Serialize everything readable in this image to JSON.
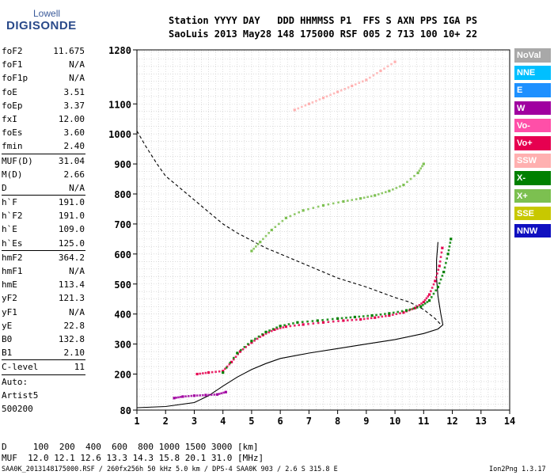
{
  "logo": {
    "line1": "Lowell",
    "line2": "DIGISONDE"
  },
  "header": {
    "row1": "Station YYYY DAY   DDD HHMMSS P1  FFS S AXN PPS IGA PS",
    "row2": "SaoLuis 2013 May28 148 175000 RSF 005 2 713 100 10+ 22"
  },
  "params": [
    {
      "k": "foF2",
      "v": "11.675"
    },
    {
      "k": "foF1",
      "v": "N/A"
    },
    {
      "k": "foF1p",
      "v": "N/A"
    },
    {
      "k": "foE",
      "v": "3.51"
    },
    {
      "k": "foEp",
      "v": "3.37"
    },
    {
      "k": "fxI",
      "v": "12.00"
    },
    {
      "k": "foEs",
      "v": "3.60"
    },
    {
      "k": "fmin",
      "v": "2.40",
      "sep": true
    },
    {
      "k": "MUF(D)",
      "v": "31.04"
    },
    {
      "k": "M(D)",
      "v": "2.66"
    },
    {
      "k": "D",
      "v": "N/A",
      "sep": true
    },
    {
      "k": "h`F",
      "v": "191.0"
    },
    {
      "k": "h`F2",
      "v": "191.0"
    },
    {
      "k": "h`E",
      "v": "109.0"
    },
    {
      "k": "h`Es",
      "v": "125.0",
      "sep": true
    },
    {
      "k": "hmF2",
      "v": "364.2"
    },
    {
      "k": "hmF1",
      "v": "N/A"
    },
    {
      "k": "hmE",
      "v": "113.4"
    },
    {
      "k": "yF2",
      "v": "121.3"
    },
    {
      "k": "yF1",
      "v": "N/A"
    },
    {
      "k": "yE",
      "v": "22.8"
    },
    {
      "k": "B0",
      "v": "132.8"
    },
    {
      "k": "B1",
      "v": "2.10",
      "sep": true
    },
    {
      "k": "C-level",
      "v": "11",
      "sep": true
    }
  ],
  "auto": [
    "Auto:",
    "Artist5",
    "500200"
  ],
  "legend": [
    {
      "label": "NoVal",
      "color": "#a8a8a8"
    },
    {
      "label": "NNE",
      "color": "#00bfff"
    },
    {
      "label": "E",
      "color": "#1e90ff"
    },
    {
      "label": "W",
      "color": "#a000a0"
    },
    {
      "label": "Vo-",
      "color": "#ff4fa8"
    },
    {
      "label": "Vo+",
      "color": "#e60050"
    },
    {
      "label": "SSW",
      "color": "#ffb0b0"
    },
    {
      "label": "X-",
      "color": "#008000"
    },
    {
      "label": "X+",
      "color": "#7cc050"
    },
    {
      "label": "SSE",
      "color": "#c8c800"
    },
    {
      "label": "NNW",
      "color": "#1010c0"
    }
  ],
  "footer": {
    "d_row": "D     100  200  400  600  800 1000 1500 3000 [km]",
    "muf_row": "MUF  12.0 12.1 12.6 13.3 14.3 15.8 20.1 31.0 [MHz]",
    "file_info": "SAA0K_2013148175000.RSF / 260fx256h 50 kHz 5.0 km / DPS-4 SAA0K 903 / 2.6 S 315.8 E",
    "version": "Ion2Png 1.3.17"
  },
  "chart_data": {
    "type": "scatter",
    "xlim": [
      1,
      14
    ],
    "ylim": [
      80,
      1280
    ],
    "x_ticks": [
      1,
      2,
      3,
      4,
      5,
      6,
      7,
      8,
      9,
      10,
      11,
      12,
      13,
      14
    ],
    "y_ticks": [
      80,
      200,
      300,
      400,
      500,
      600,
      700,
      800,
      900,
      1000,
      1100,
      1280
    ],
    "grid": true,
    "series": [
      {
        "name": "Vo+",
        "role": "ordinary F trace",
        "points": [
          [
            3.1,
            200
          ],
          [
            3.5,
            205
          ],
          [
            4.0,
            210
          ],
          [
            4.3,
            240
          ],
          [
            4.6,
            275
          ],
          [
            5.0,
            305
          ],
          [
            5.4,
            330
          ],
          [
            5.8,
            348
          ],
          [
            6.2,
            358
          ],
          [
            6.8,
            365
          ],
          [
            7.5,
            372
          ],
          [
            8.2,
            378
          ],
          [
            8.8,
            382
          ],
          [
            9.3,
            388
          ],
          [
            9.8,
            395
          ],
          [
            10.3,
            405
          ],
          [
            10.7,
            420
          ],
          [
            11.0,
            440
          ],
          [
            11.2,
            465
          ],
          [
            11.4,
            510
          ],
          [
            11.55,
            560
          ],
          [
            11.65,
            620
          ]
        ]
      },
      {
        "name": "X-",
        "role": "extraordinary F trace",
        "points": [
          [
            4.0,
            205
          ],
          [
            4.5,
            270
          ],
          [
            5.0,
            310
          ],
          [
            5.5,
            340
          ],
          [
            6.0,
            360
          ],
          [
            6.6,
            372
          ],
          [
            7.3,
            378
          ],
          [
            8.0,
            385
          ],
          [
            8.6,
            390
          ],
          [
            9.2,
            395
          ],
          [
            9.8,
            402
          ],
          [
            10.4,
            412
          ],
          [
            10.9,
            425
          ],
          [
            11.2,
            445
          ],
          [
            11.5,
            490
          ],
          [
            11.7,
            540
          ],
          [
            11.85,
            600
          ],
          [
            11.95,
            650
          ]
        ]
      },
      {
        "name": "X+",
        "role": "second-hop trace",
        "points": [
          [
            5.0,
            610
          ],
          [
            5.3,
            640
          ],
          [
            5.7,
            680
          ],
          [
            6.2,
            720
          ],
          [
            6.8,
            745
          ],
          [
            7.5,
            762
          ],
          [
            8.2,
            775
          ],
          [
            8.8,
            785
          ],
          [
            9.3,
            795
          ],
          [
            9.8,
            810
          ],
          [
            10.3,
            830
          ],
          [
            10.8,
            870
          ],
          [
            11.0,
            900
          ]
        ]
      },
      {
        "name": "SSW",
        "role": "third-hop trace",
        "points": [
          [
            6.5,
            1080
          ],
          [
            7.0,
            1100
          ],
          [
            7.5,
            1120
          ],
          [
            8.0,
            1140
          ],
          [
            8.5,
            1160
          ],
          [
            9.0,
            1180
          ],
          [
            9.5,
            1210
          ],
          [
            10.0,
            1240
          ]
        ]
      },
      {
        "name": "W",
        "role": "sporadic E",
        "points": [
          [
            2.3,
            120
          ],
          [
            2.6,
            125
          ],
          [
            3.0,
            128
          ],
          [
            3.4,
            130
          ],
          [
            3.8,
            132
          ],
          [
            4.1,
            140
          ]
        ]
      }
    ],
    "curves": [
      {
        "role": "true height profile (solid)",
        "points": [
          [
            1,
            88
          ],
          [
            2,
            92
          ],
          [
            3,
            105
          ],
          [
            3.5,
            128
          ],
          [
            4,
            160
          ],
          [
            4.5,
            190
          ],
          [
            5,
            215
          ],
          [
            5.5,
            235
          ],
          [
            6,
            252
          ],
          [
            7,
            270
          ],
          [
            8,
            285
          ],
          [
            9,
            300
          ],
          [
            10,
            315
          ],
          [
            11,
            335
          ],
          [
            11.5,
            350
          ],
          [
            11.67,
            364
          ],
          [
            11.6,
            400
          ],
          [
            11.5,
            460
          ],
          [
            11.45,
            520
          ],
          [
            11.45,
            580
          ],
          [
            11.5,
            640
          ]
        ]
      },
      {
        "role": "MUF curve (dashed)",
        "points": [
          [
            1,
            1010
          ],
          [
            1.3,
            960
          ],
          [
            1.7,
            900
          ],
          [
            2,
            860
          ],
          [
            2.5,
            820
          ],
          [
            3,
            780
          ],
          [
            3.5,
            740
          ],
          [
            4,
            700
          ],
          [
            4.5,
            670
          ],
          [
            5,
            645
          ],
          [
            5.5,
            620
          ],
          [
            6,
            600
          ],
          [
            7,
            560
          ],
          [
            8,
            520
          ],
          [
            9,
            490
          ],
          [
            10,
            455
          ],
          [
            10.5,
            440
          ],
          [
            11,
            415
          ],
          [
            11.4,
            385
          ],
          [
            11.6,
            365
          ]
        ]
      }
    ]
  }
}
